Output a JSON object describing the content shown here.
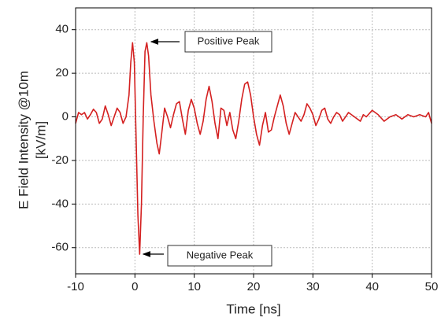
{
  "chart_data": {
    "type": "line",
    "xlabel": "Time [ns]",
    "ylabel": [
      "E Field Intensity @10m",
      "[kV/m]"
    ],
    "annotations": [
      "Positive Peak",
      "Negative Peak"
    ],
    "xlim": [
      -10,
      50
    ],
    "ylim": [
      -72,
      50
    ],
    "xticks": [
      -10,
      0,
      10,
      20,
      30,
      40,
      50
    ],
    "yticks": [
      -60,
      -40,
      -20,
      0,
      20,
      40
    ],
    "grid": true,
    "x": [
      -10,
      -9.5,
      -9,
      -8.5,
      -8,
      -7.5,
      -7,
      -6.5,
      -6,
      -5.5,
      -5,
      -4.5,
      -4,
      -3.5,
      -3,
      -2.5,
      -2,
      -1.5,
      -1,
      -0.7,
      -0.4,
      -0.1,
      0.2,
      0.5,
      0.8,
      1.1,
      1.4,
      1.7,
      2,
      2.3,
      2.7,
      3.2,
      3.7,
      4.1,
      4.5,
      5,
      5.5,
      6,
      6.5,
      7,
      7.5,
      8,
      8.5,
      9,
      9.5,
      10,
      10.5,
      11,
      11.5,
      12,
      12.5,
      13,
      13.5,
      14,
      14.5,
      15,
      15.5,
      16,
      16.5,
      17,
      17.5,
      18,
      18.5,
      19,
      19.5,
      20,
      20.5,
      21,
      21.5,
      22,
      22.5,
      23,
      23.5,
      24,
      24.5,
      25,
      25.5,
      26,
      26.5,
      27,
      27.5,
      28,
      28.5,
      29,
      29.5,
      30,
      30.5,
      31,
      31.5,
      32,
      32.5,
      33,
      33.5,
      34,
      34.5,
      35,
      35.5,
      36,
      37,
      38,
      38.5,
      39,
      40,
      41,
      42,
      43,
      44,
      45,
      46,
      47,
      48,
      49,
      49.5,
      50
    ],
    "series": [
      {
        "name": "E Field",
        "color": "#d42020",
        "values": [
          -3,
          2,
          1,
          2,
          -1,
          1,
          3.5,
          2,
          -3,
          -1,
          5,
          1,
          -4,
          0,
          4,
          2,
          -3,
          0,
          10,
          25,
          34,
          25,
          -10,
          -45,
          -63,
          -40,
          0,
          30,
          34,
          28,
          10,
          -2,
          -12,
          -17,
          -8,
          4,
          0,
          -5,
          1,
          6,
          7,
          -1,
          -8,
          3,
          8,
          4,
          -3,
          -8,
          -2,
          8,
          14,
          7,
          -3,
          -10,
          4,
          3,
          -4,
          2,
          -6,
          -10,
          -2,
          8,
          15,
          16,
          10,
          0,
          -8,
          -13,
          -4,
          2,
          -7,
          -6,
          0,
          5,
          10,
          5,
          -3,
          -8,
          -3,
          2,
          0,
          -2,
          1,
          6,
          4,
          1,
          -4,
          -1,
          3,
          4,
          -1,
          -3,
          0,
          2,
          1,
          -2,
          0,
          2,
          0,
          -2,
          1,
          0,
          3,
          1,
          -2,
          0,
          1,
          -1,
          1,
          0,
          1,
          0,
          2,
          -3
        ]
      }
    ]
  }
}
